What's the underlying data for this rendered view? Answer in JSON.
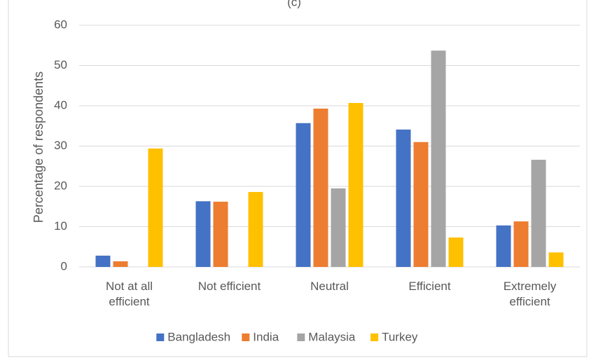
{
  "chart_data": {
    "type": "bar",
    "title": "(c)",
    "y_label": "Percentage of respondents",
    "categories": [
      "Not at all efficient",
      "Not efficient",
      "Neutral",
      "Efficient",
      "Extremely efficient"
    ],
    "series": [
      {
        "name": "Bangladesh",
        "color": "#4472c4",
        "values": [
          2.8,
          16.3,
          35.7,
          34.1,
          10.3
        ]
      },
      {
        "name": "India",
        "color": "#ed7d31",
        "values": [
          1.4,
          16.2,
          39.3,
          31.0,
          11.3
        ]
      },
      {
        "name": "Malaysia",
        "color": "#a5a5a5",
        "values": [
          0,
          0,
          19.5,
          53.7,
          26.6
        ]
      },
      {
        "name": "Turkey",
        "color": "#ffc000",
        "values": [
          29.4,
          18.6,
          40.7,
          7.3,
          3.6
        ]
      }
    ],
    "ylim": [
      0,
      60
    ],
    "yticks": [
      0,
      10,
      20,
      30,
      40,
      50,
      60
    ],
    "grid": true,
    "legend": "bottom"
  }
}
